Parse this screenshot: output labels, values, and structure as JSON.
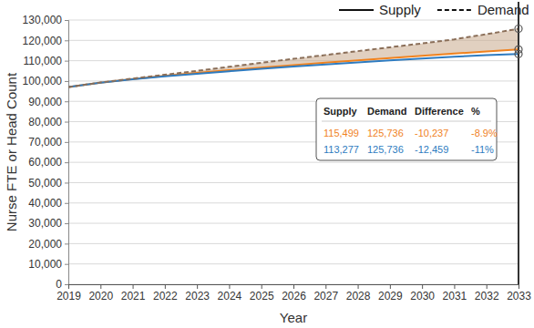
{
  "chart_data": {
    "type": "line",
    "x_label": "Year",
    "y_label": "Nurse FTE or Head Count",
    "x": [
      2019,
      2020,
      2021,
      2022,
      2023,
      2024,
      2025,
      2026,
      2027,
      2028,
      2029,
      2030,
      2031,
      2032,
      2033
    ],
    "xlim": [
      2019,
      2033
    ],
    "xticks": [
      2019,
      2020,
      2021,
      2022,
      2023,
      2024,
      2025,
      2026,
      2027,
      2028,
      2029,
      2030,
      2031,
      2032,
      2033
    ],
    "ylim": [
      0,
      130000
    ],
    "yticks": [
      0,
      {
        "value": 10000,
        "label": "10,000"
      },
      {
        "value": 20000,
        "label": "20,000"
      },
      {
        "value": 30000,
        "label": "30,000"
      },
      {
        "value": 40000,
        "label": "40,000"
      },
      {
        "value": 50000,
        "label": "50,000"
      },
      {
        "value": 60000,
        "label": "60,000"
      },
      {
        "value": 70000,
        "label": "70,000"
      },
      {
        "value": 80000,
        "label": "80,000"
      },
      {
        "value": 90000,
        "label": "90,000"
      },
      {
        "value": 100000,
        "label": "100,000"
      },
      {
        "value": 110000,
        "label": "110,000"
      },
      {
        "value": 120000,
        "label": "120,000"
      },
      {
        "value": 130000,
        "label": "130,000"
      }
    ],
    "grid": true,
    "legend": "top-right",
    "series": [
      {
        "name": "Supply",
        "color": "#f0821e",
        "line_style": "solid",
        "values": [
          97000,
          99200,
          101000,
          102500,
          104000,
          105300,
          106600,
          107800,
          109000,
          110200,
          111300,
          112400,
          113500,
          114500,
          115499
        ]
      },
      {
        "name": "Supply",
        "color": "#2e7bc0",
        "line_style": "solid",
        "values": [
          97000,
          99200,
          100900,
          102300,
          103600,
          104800,
          106000,
          107100,
          108200,
          109200,
          110200,
          111100,
          112000,
          112700,
          113277
        ]
      },
      {
        "name": "Demand",
        "color": "#8a6e58",
        "line_style": "dashed",
        "values": [
          97000,
          99300,
          101200,
          103100,
          105000,
          107000,
          109000,
          110900,
          112800,
          114700,
          116600,
          118500,
          120500,
          123000,
          125736
        ]
      }
    ],
    "annotation_table": {
      "columns": [
        "Supply",
        "Demand",
        "Difference",
        "%"
      ],
      "rows": [
        [
          "115,499",
          "125,736",
          "-10,237",
          "-8.9%"
        ],
        [
          "113,277",
          "125,736",
          "-12,459",
          "-11%"
        ]
      ]
    }
  }
}
